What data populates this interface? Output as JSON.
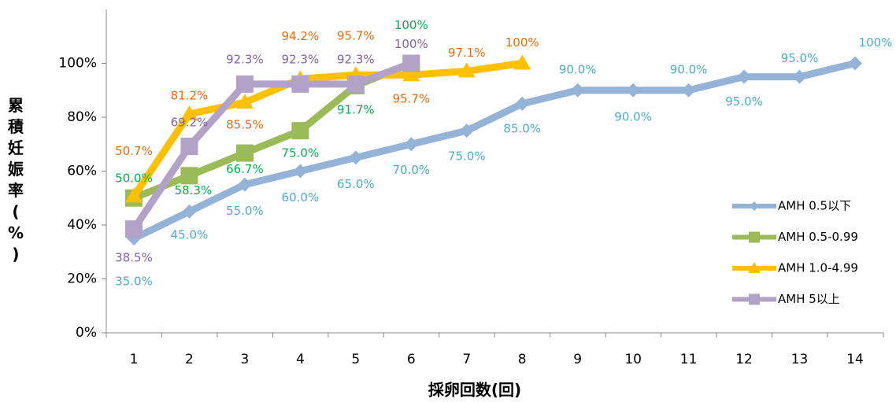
{
  "chart_data": {
    "type": "line",
    "x_label": "採卵回数(回)",
    "y_label": "累積妊娠率(%)",
    "categories": [
      "1",
      "2",
      "3",
      "4",
      "5",
      "6",
      "7",
      "8",
      "9",
      "10",
      "11",
      "12",
      "13",
      "14"
    ],
    "ylim": [
      0,
      120
    ],
    "yticks": [
      {
        "value": 0,
        "label": "0%"
      },
      {
        "value": 20,
        "label": "20%"
      },
      {
        "value": 40,
        "label": "40%"
      },
      {
        "value": 60,
        "label": "60%"
      },
      {
        "value": 80,
        "label": "80%"
      },
      {
        "value": 100,
        "label": "100%"
      }
    ],
    "legend": "right",
    "series": [
      {
        "name": "AMH 0.5以下",
        "color": "#95b3d7",
        "label_color": "#4bacc6",
        "marker": "diamond",
        "values": [
          35,
          45,
          55,
          60,
          65,
          70,
          75,
          85,
          90,
          90,
          90,
          95,
          95,
          100
        ],
        "value_labels": [
          "35.0%",
          "45.0%",
          "55.0%",
          "60.0%",
          "65.0%",
          "70.0%",
          "75.0%",
          "85.0%",
          "90.0%",
          "90.0%",
          "90.0%",
          "95.0%",
          "95.0%",
          "100%"
        ]
      },
      {
        "name": "AMH 0.5-0.99",
        "color": "#9bbb59",
        "label_color": "#00b050",
        "marker": "square",
        "values": [
          50,
          58.3,
          66.7,
          75,
          91.7,
          100,
          null,
          null,
          null,
          null,
          null,
          null,
          null,
          null
        ],
        "value_labels": [
          "50.0%",
          "58.3%",
          "66.7%",
          "75.0%",
          "91.7%",
          "100%",
          null,
          null,
          null,
          null,
          null,
          null,
          null,
          null
        ]
      },
      {
        "name": "AMH 1.0-4.99",
        "color": "#ffc000",
        "label_color": "#e46c0a",
        "marker": "triangle",
        "values": [
          50.7,
          81.2,
          85.5,
          94.2,
          95.7,
          95.7,
          97.1,
          100,
          null,
          null,
          null,
          null,
          null,
          null
        ],
        "value_labels": [
          "50.7%",
          "81.2%",
          "85.5%",
          "94.2%",
          "95.7%",
          "95.7%",
          "97.1%",
          "100%",
          null,
          null,
          null,
          null,
          null,
          null
        ]
      },
      {
        "name": "AMH 5以上",
        "color": "#b3a2c7",
        "label_color": "#8064a2",
        "marker": "square",
        "values": [
          38.5,
          69.2,
          92.3,
          92.3,
          92.3,
          100,
          null,
          null,
          null,
          null,
          null,
          null,
          null,
          null
        ],
        "value_labels": [
          "38.5%",
          "69.2%",
          "92.3%",
          "92.3%",
          "92.3%",
          "100%",
          null,
          null,
          null,
          null,
          null,
          null,
          null,
          null
        ]
      }
    ]
  }
}
